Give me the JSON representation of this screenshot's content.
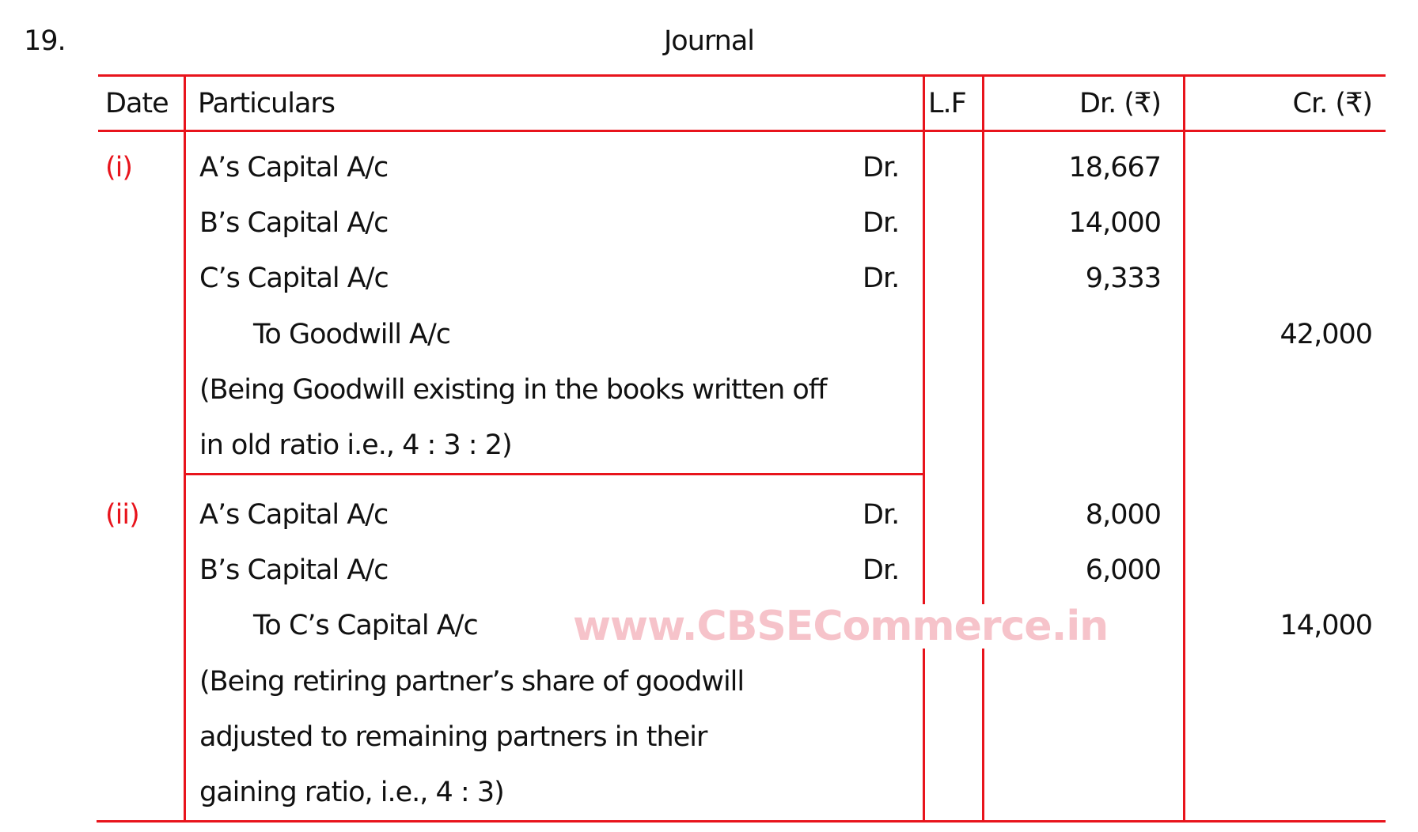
{
  "question_number": "19.",
  "title": "Journal",
  "headers": {
    "date": "Date",
    "particulars": "Particulars",
    "lf": "L.F",
    "dr": "Dr. (₹)",
    "cr": "Cr. (₹)"
  },
  "entries": [
    {
      "date": "(i)",
      "lines": [
        {
          "text": "A’s Capital A/c",
          "dr_mark": "Dr.",
          "dr": "18,667",
          "cr": ""
        },
        {
          "text": "B’s Capital A/c",
          "dr_mark": "Dr.",
          "dr": "14,000",
          "cr": ""
        },
        {
          "text": "C’s Capital A/c",
          "dr_mark": "Dr.",
          "dr": "9,333",
          "cr": ""
        },
        {
          "text": "To Goodwill A/c",
          "indent": true,
          "dr_mark": "",
          "dr": "",
          "cr": "42,000"
        }
      ],
      "narration": [
        "(Being Goodwill existing in the books written off",
        "in old ratio i.e., 4 : 3 : 2)"
      ]
    },
    {
      "date": "(ii)",
      "lines": [
        {
          "text": "A’s Capital A/c",
          "dr_mark": "Dr.",
          "dr": "8,000",
          "cr": ""
        },
        {
          "text": "B’s Capital A/c",
          "dr_mark": "Dr.",
          "dr": "6,000",
          "cr": ""
        },
        {
          "text": "To C’s Capital A/c",
          "indent": true,
          "dr_mark": "",
          "dr": "",
          "cr": "14,000"
        }
      ],
      "narration": [
        "(Being retiring partner’s share of goodwill",
        "adjusted to remaining partners in their",
        "gaining ratio, i.e., 4 : 3)"
      ]
    }
  ],
  "watermark": "www.CBSECommerce.in",
  "colors": {
    "rule": "#e8141c",
    "date_label": "#e8141c",
    "watermark": "#f6c3ca"
  }
}
